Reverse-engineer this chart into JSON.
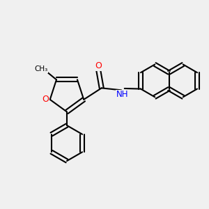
{
  "bg_color": "#f0f0f0",
  "bond_color": "#000000",
  "atom_colors": {
    "O": "#ff0000",
    "N": "#0000ff",
    "C": "#000000"
  },
  "bond_width": 1.5,
  "figsize": [
    3.0,
    3.0
  ],
  "dpi": 100
}
